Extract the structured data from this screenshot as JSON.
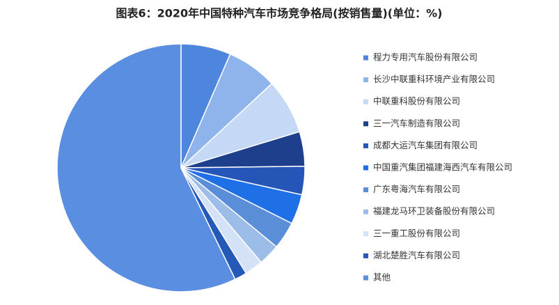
{
  "chart_data": {
    "type": "pie",
    "title": "图表6：2020年中国特种汽车市场竞争格局(按销售量)(单位：%)",
    "categories": [
      "程力专用汽车股份有限公司",
      "长沙中联重科环境产业有限公司",
      "中联重科股份有限公司",
      "三一汽车制造有限公司",
      "成都大运汽车集团有限公司",
      "中国重汽集团福建海西汽车有限公司",
      "广东粤海汽车有限公司",
      "福建龙马环卫装备股份有限公司",
      "三一重工股份有限公司",
      "湖北楚胜汽车有限公司",
      "其他"
    ],
    "values": [
      6.5,
      6.6,
      7.2,
      4.5,
      3.7,
      3.9,
      3.6,
      2.8,
      2.4,
      1.6,
      57.2
    ],
    "colors": [
      "#4e86dd",
      "#8fb4ec",
      "#c5d9f7",
      "#1d3f8c",
      "#2655b8",
      "#1f6fe6",
      "#5b8ed8",
      "#9dbde9",
      "#d3e2f7",
      "#2559b8",
      "#5a8ee0"
    ],
    "legend": "right"
  }
}
